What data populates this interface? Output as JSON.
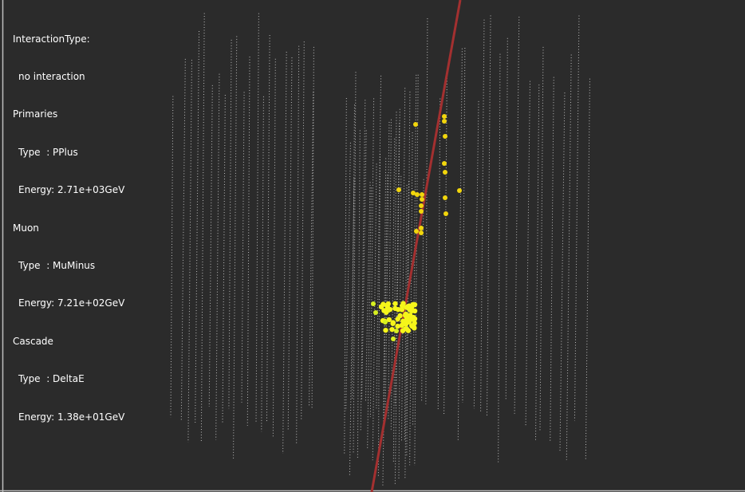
{
  "overlay": {
    "interaction": {
      "heading": "InteractionType:",
      "value": "no interaction"
    },
    "primaries": {
      "heading": "Primaries",
      "type": "Type  : PPlus",
      "energy": "Energy: 2.71e+03GeV"
    },
    "muon": {
      "heading": "Muon",
      "type": "Type  : MuMinus",
      "energy": "Energy: 7.21e+02GeV"
    },
    "cascade": {
      "heading": "Cascade",
      "type": "Type  : DeltaE",
      "energy": "Energy: 1.38e+01GeV"
    }
  }
}
